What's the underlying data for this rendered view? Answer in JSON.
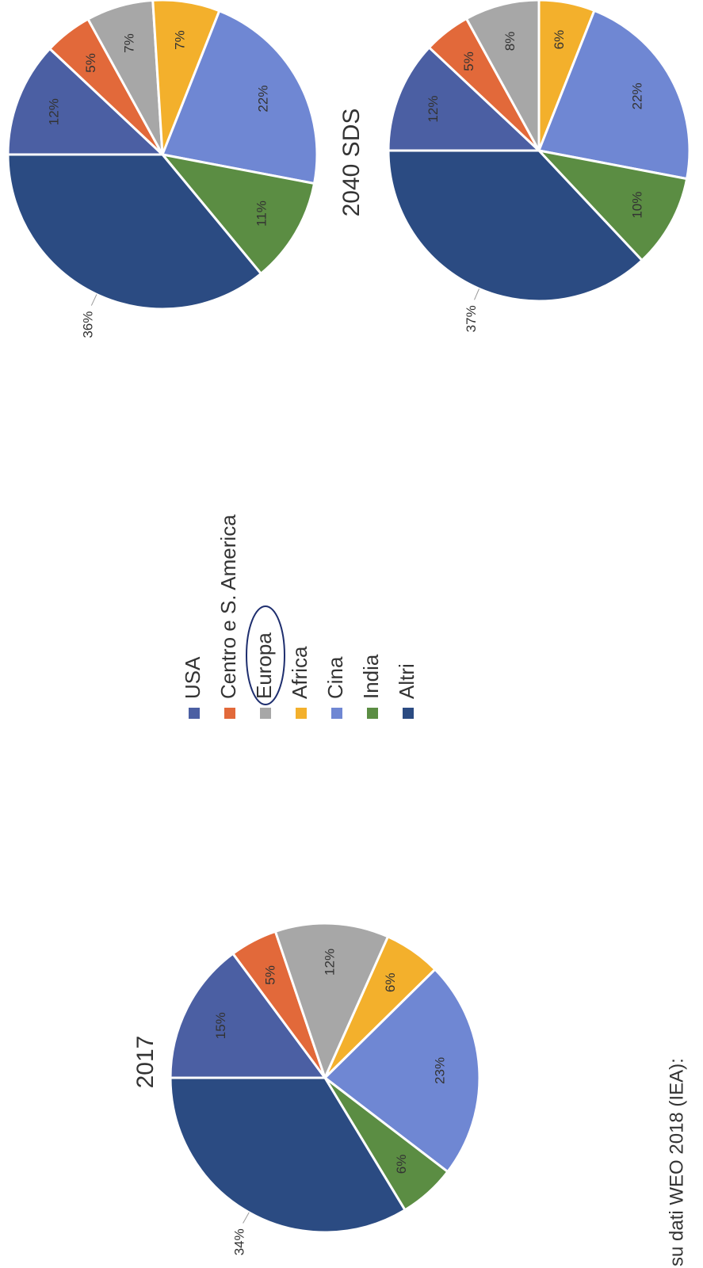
{
  "chart_data": [
    {
      "type": "pie",
      "title": "2017",
      "values": [
        15,
        5,
        12,
        6,
        23,
        6,
        34
      ],
      "value_labels": [
        "15%",
        "5%",
        "12%",
        "6%",
        "23%",
        "6%",
        "34%"
      ]
    },
    {
      "type": "pie",
      "values": [
        12,
        5,
        7,
        7,
        22,
        11,
        36
      ],
      "value_labels": [
        "12%",
        "5%",
        "7%",
        "7%",
        "22%",
        "11%",
        "36%"
      ]
    },
    {
      "type": "pie",
      "title": "2040 SDS",
      "values": [
        12,
        5,
        8,
        6,
        22,
        10,
        37
      ],
      "value_labels": [
        "12%",
        "5%",
        "8%",
        "6%",
        "22%",
        "10%",
        "37%"
      ]
    }
  ],
  "legend": {
    "categories": [
      "USA",
      "Centro e S. America",
      "Europa",
      "Africa",
      "Cina",
      "India",
      "Altri"
    ],
    "colors": [
      "#4b5fa3",
      "#e2693a",
      "#a7a7a7",
      "#f3b02c",
      "#6f87d3",
      "#5b8d43",
      "#2b4b82"
    ]
  },
  "source": "su dati WEO 2018 (IEA):"
}
